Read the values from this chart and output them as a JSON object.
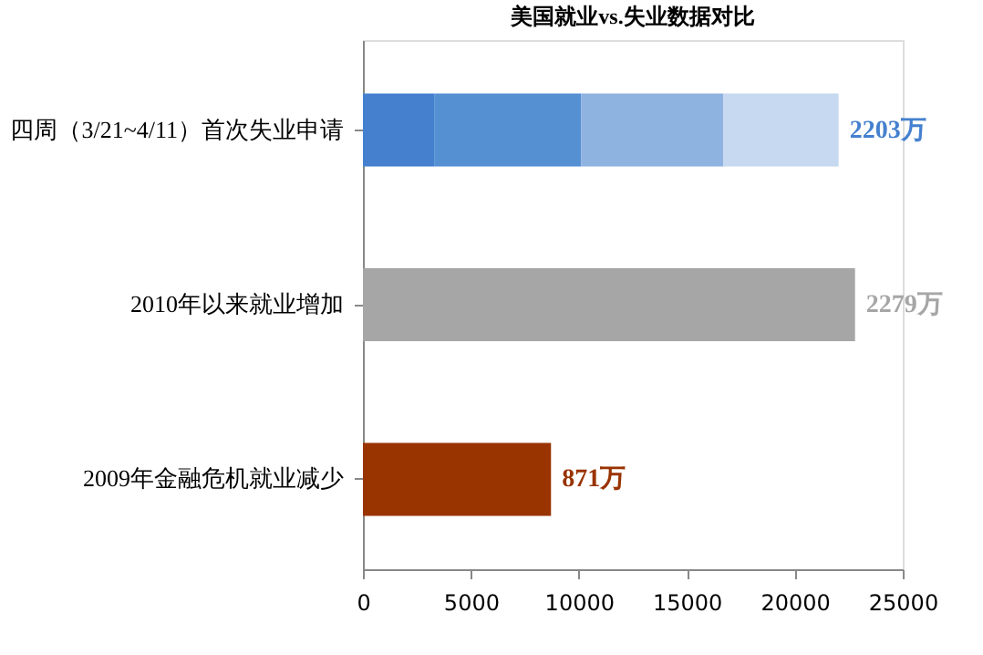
{
  "chart_data": {
    "type": "bar",
    "orientation": "horizontal",
    "stacked": true,
    "title": "美国就业vs.失业数据对比",
    "categories": [
      "四周（3/21~4/11）首次失业申请",
      "2010年以来就业增加",
      "2009年金融危机就业减少"
    ],
    "series": [
      {
        "colors": [
          "#4580cf",
          "#a6a6a6",
          "#993300"
        ],
        "values": [
          3300,
          22790,
          8710
        ]
      },
      {
        "colors": [
          "#5590d3",
          null,
          null
        ],
        "values": [
          6800,
          null,
          null
        ]
      },
      {
        "colors": [
          "#8fb3e1",
          null,
          null
        ],
        "values": [
          6600,
          null,
          null
        ]
      },
      {
        "colors": [
          "#c6d9f0",
          null,
          null
        ],
        "values": [
          5330,
          null,
          null
        ]
      }
    ],
    "annotations": [
      {
        "text": "2203万",
        "x": 22030,
        "y": "四周（3/21~4/11）首次失业申请"
      },
      {
        "text": "2279万",
        "x": 22790,
        "y": "2010年以来就业增加"
      },
      {
        "text": "871万",
        "x": 8710,
        "y": "2009年金融危机就业减少"
      }
    ],
    "xlim": [
      0,
      25000
    ],
    "xticks": [
      0,
      5000,
      10000,
      15000,
      20000,
      25000
    ],
    "grid": false
  }
}
